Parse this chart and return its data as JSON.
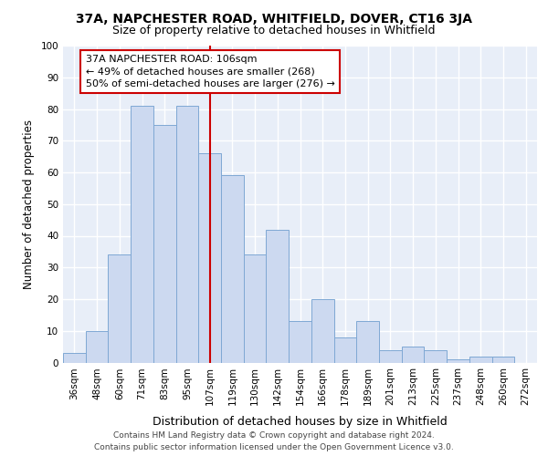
{
  "title1": "37A, NAPCHESTER ROAD, WHITFIELD, DOVER, CT16 3JA",
  "title2": "Size of property relative to detached houses in Whitfield",
  "xlabel": "Distribution of detached houses by size in Whitfield",
  "ylabel": "Number of detached properties",
  "categories": [
    "36sqm",
    "48sqm",
    "60sqm",
    "71sqm",
    "83sqm",
    "95sqm",
    "107sqm",
    "119sqm",
    "130sqm",
    "142sqm",
    "154sqm",
    "166sqm",
    "178sqm",
    "189sqm",
    "201sqm",
    "213sqm",
    "225sqm",
    "237sqm",
    "248sqm",
    "260sqm",
    "272sqm"
  ],
  "values": [
    3,
    10,
    34,
    81,
    75,
    81,
    66,
    59,
    34,
    42,
    13,
    20,
    8,
    13,
    4,
    5,
    4,
    1,
    2,
    2,
    0
  ],
  "bar_color": "#ccd9f0",
  "bar_edge_color": "#7fa8d4",
  "vline_x_index": 6,
  "vline_color": "#cc0000",
  "annotation_text": "37A NAPCHESTER ROAD: 106sqm\n← 49% of detached houses are smaller (268)\n50% of semi-detached houses are larger (276) →",
  "annotation_box_facecolor": "#ffffff",
  "annotation_box_edgecolor": "#cc0000",
  "footer_text": "Contains HM Land Registry data © Crown copyright and database right 2024.\nContains public sector information licensed under the Open Government Licence v3.0.",
  "ylim": [
    0,
    100
  ],
  "yticks": [
    0,
    10,
    20,
    30,
    40,
    50,
    60,
    70,
    80,
    90,
    100
  ],
  "fig_bgcolor": "#ffffff",
  "axes_bgcolor": "#e8eef8",
  "grid_color": "#ffffff",
  "title1_fontsize": 10,
  "title2_fontsize": 9,
  "xlabel_fontsize": 9,
  "ylabel_fontsize": 8.5,
  "tick_fontsize": 7.5,
  "annotation_fontsize": 8,
  "footer_fontsize": 6.5
}
